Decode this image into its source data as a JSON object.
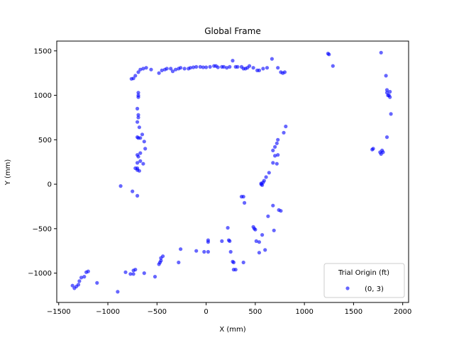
{
  "chart_data": {
    "type": "scatter",
    "title": "Global Frame",
    "xlabel": "X (mm)",
    "ylabel": "Y (mm)",
    "xlim": [
      -1520,
      2060
    ],
    "ylim": [
      -1330,
      1610
    ],
    "xticks": [
      -1500,
      -1000,
      -500,
      0,
      500,
      1000,
      1500,
      2000
    ],
    "yticks": [
      -1000,
      -500,
      0,
      500,
      1000,
      1500
    ],
    "xtick_labels": [
      "−1500",
      "−1000",
      "−500",
      "0",
      "500",
      "1000",
      "1500",
      "2000"
    ],
    "ytick_labels": [
      "−1000",
      "−500",
      "0",
      "500",
      "1000",
      "1500"
    ],
    "grid": false,
    "legend": {
      "title": "Trial Origin (ft)",
      "placement": "lower-right",
      "entries": [
        "(0, 3)"
      ]
    },
    "series": [
      {
        "name": "(0, 3)",
        "color": "#0000ff",
        "points": [
          [
            -760,
            1185
          ],
          [
            -740,
            1190
          ],
          [
            -720,
            1220
          ],
          [
            -690,
            1260
          ],
          [
            -670,
            1290
          ],
          [
            -640,
            1300
          ],
          [
            -610,
            1310
          ],
          [
            -560,
            1290
          ],
          [
            -480,
            1250
          ],
          [
            -450,
            1280
          ],
          [
            -420,
            1290
          ],
          [
            -400,
            1300
          ],
          [
            -360,
            1300
          ],
          [
            -340,
            1270
          ],
          [
            -310,
            1290
          ],
          [
            -280,
            1300
          ],
          [
            -260,
            1310
          ],
          [
            -220,
            1300
          ],
          [
            -180,
            1300
          ],
          [
            -160,
            1310
          ],
          [
            -130,
            1315
          ],
          [
            -100,
            1320
          ],
          [
            -60,
            1320
          ],
          [
            -30,
            1315
          ],
          [
            0,
            1315
          ],
          [
            40,
            1320
          ],
          [
            80,
            1330
          ],
          [
            100,
            1330
          ],
          [
            120,
            1315
          ],
          [
            160,
            1320
          ],
          [
            180,
            1320
          ],
          [
            210,
            1310
          ],
          [
            240,
            1320
          ],
          [
            270,
            1390
          ],
          [
            300,
            1320
          ],
          [
            320,
            1320
          ],
          [
            360,
            1320
          ],
          [
            380,
            1300
          ],
          [
            400,
            1300
          ],
          [
            420,
            1310
          ],
          [
            440,
            1330
          ],
          [
            480,
            1310
          ],
          [
            520,
            1280
          ],
          [
            540,
            1280
          ],
          [
            580,
            1300
          ],
          [
            620,
            1310
          ],
          [
            670,
            1410
          ],
          [
            730,
            1310
          ],
          [
            760,
            1260
          ],
          [
            780,
            1250
          ],
          [
            800,
            1260
          ],
          [
            -690,
            1030
          ],
          [
            -690,
            1000
          ],
          [
            -690,
            980
          ],
          [
            -700,
            850
          ],
          [
            -690,
            780
          ],
          [
            -690,
            750
          ],
          [
            -700,
            700
          ],
          [
            -680,
            640
          ],
          [
            -700,
            530
          ],
          [
            -690,
            520
          ],
          [
            -670,
            520
          ],
          [
            -650,
            560
          ],
          [
            -630,
            480
          ],
          [
            -620,
            400
          ],
          [
            -700,
            330
          ],
          [
            -690,
            310
          ],
          [
            -670,
            350
          ],
          [
            -700,
            240
          ],
          [
            -670,
            260
          ],
          [
            -640,
            230
          ],
          [
            -720,
            180
          ],
          [
            -700,
            160
          ],
          [
            -680,
            150
          ],
          [
            -700,
            180
          ],
          [
            -870,
            -20
          ],
          [
            -750,
            -80
          ],
          [
            -700,
            -130
          ],
          [
            560,
            0
          ],
          [
            580,
            20
          ],
          [
            590,
            40
          ],
          [
            610,
            80
          ],
          [
            640,
            130
          ],
          [
            680,
            240
          ],
          [
            720,
            230
          ],
          [
            700,
            320
          ],
          [
            730,
            330
          ],
          [
            680,
            380
          ],
          [
            700,
            420
          ],
          [
            720,
            460
          ],
          [
            730,
            500
          ],
          [
            790,
            580
          ],
          [
            810,
            650
          ],
          [
            560,
            10
          ],
          [
            570,
            -10
          ],
          [
            360,
            -140
          ],
          [
            380,
            -140
          ],
          [
            390,
            -210
          ],
          [
            480,
            -480
          ],
          [
            490,
            -500
          ],
          [
            500,
            -510
          ],
          [
            510,
            -640
          ],
          [
            540,
            -650
          ],
          [
            540,
            -770
          ],
          [
            600,
            -740
          ],
          [
            630,
            -360
          ],
          [
            680,
            -240
          ],
          [
            690,
            -520
          ],
          [
            740,
            -290
          ],
          [
            760,
            -300
          ],
          [
            570,
            -570
          ],
          [
            220,
            -490
          ],
          [
            230,
            -630
          ],
          [
            240,
            -640
          ],
          [
            250,
            -760
          ],
          [
            270,
            -870
          ],
          [
            280,
            -880
          ],
          [
            280,
            -960
          ],
          [
            300,
            -960
          ],
          [
            380,
            -880
          ],
          [
            160,
            -640
          ],
          [
            20,
            -630
          ],
          [
            20,
            -650
          ],
          [
            20,
            -760
          ],
          [
            -20,
            -760
          ],
          [
            -100,
            -750
          ],
          [
            -260,
            -730
          ],
          [
            -280,
            -880
          ],
          [
            -440,
            -810
          ],
          [
            -460,
            -830
          ],
          [
            -460,
            -860
          ],
          [
            -470,
            -880
          ],
          [
            -480,
            -900
          ],
          [
            -520,
            -1040
          ],
          [
            -630,
            -1000
          ],
          [
            -720,
            -960
          ],
          [
            -740,
            -970
          ],
          [
            -740,
            -1010
          ],
          [
            -770,
            -1010
          ],
          [
            -820,
            -990
          ],
          [
            -900,
            -1210
          ],
          [
            -1110,
            -1110
          ],
          [
            -1200,
            -980
          ],
          [
            -1220,
            -990
          ],
          [
            -1240,
            -1040
          ],
          [
            -1270,
            -1050
          ],
          [
            -1290,
            -1090
          ],
          [
            -1300,
            -1130
          ],
          [
            -1320,
            -1150
          ],
          [
            -1340,
            -1170
          ],
          [
            -1360,
            -1140
          ],
          [
            1240,
            1470
          ],
          [
            1250,
            1460
          ],
          [
            1290,
            1330
          ],
          [
            1780,
            1480
          ],
          [
            1830,
            1220
          ],
          [
            1840,
            1060
          ],
          [
            1840,
            1030
          ],
          [
            1860,
            1000
          ],
          [
            1870,
            980
          ],
          [
            1870,
            1040
          ],
          [
            1850,
            1000
          ],
          [
            1880,
            790
          ],
          [
            1840,
            530
          ],
          [
            1690,
            390
          ],
          [
            1700,
            400
          ],
          [
            1770,
            360
          ],
          [
            1780,
            340
          ],
          [
            1790,
            380
          ],
          [
            1800,
            360
          ]
        ]
      }
    ]
  }
}
